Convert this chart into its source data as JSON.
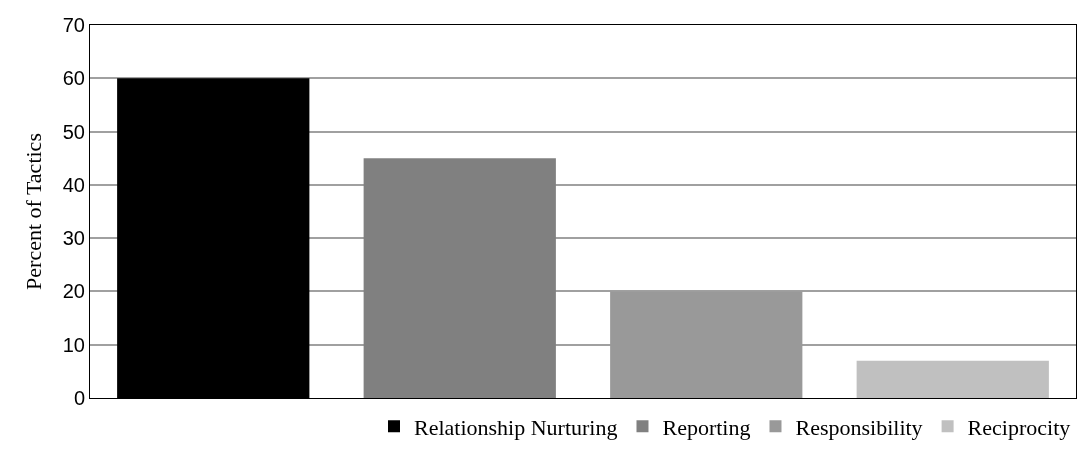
{
  "chart_data": {
    "type": "bar",
    "ylabel": "Percent of Tactics",
    "categories": [
      null,
      null,
      null,
      null
    ],
    "series": [
      {
        "name": "Relationship Nurturing",
        "color": "#000000",
        "values": [
          60,
          null,
          null,
          null
        ]
      },
      {
        "name": "Reporting",
        "color": "#808080",
        "values": [
          null,
          45,
          null,
          null
        ]
      },
      {
        "name": "Responsibility",
        "color": "#999999",
        "values": [
          null,
          null,
          20,
          null
        ]
      },
      {
        "name": "Reciprocity",
        "color": "#c0c0c0",
        "values": [
          null,
          null,
          null,
          7
        ]
      }
    ],
    "ylim": [
      0,
      70
    ],
    "yticks": [
      0,
      10,
      20,
      30,
      40,
      50,
      60,
      70
    ],
    "grid": "y",
    "legend": "bottom",
    "tick_labels": "y"
  }
}
